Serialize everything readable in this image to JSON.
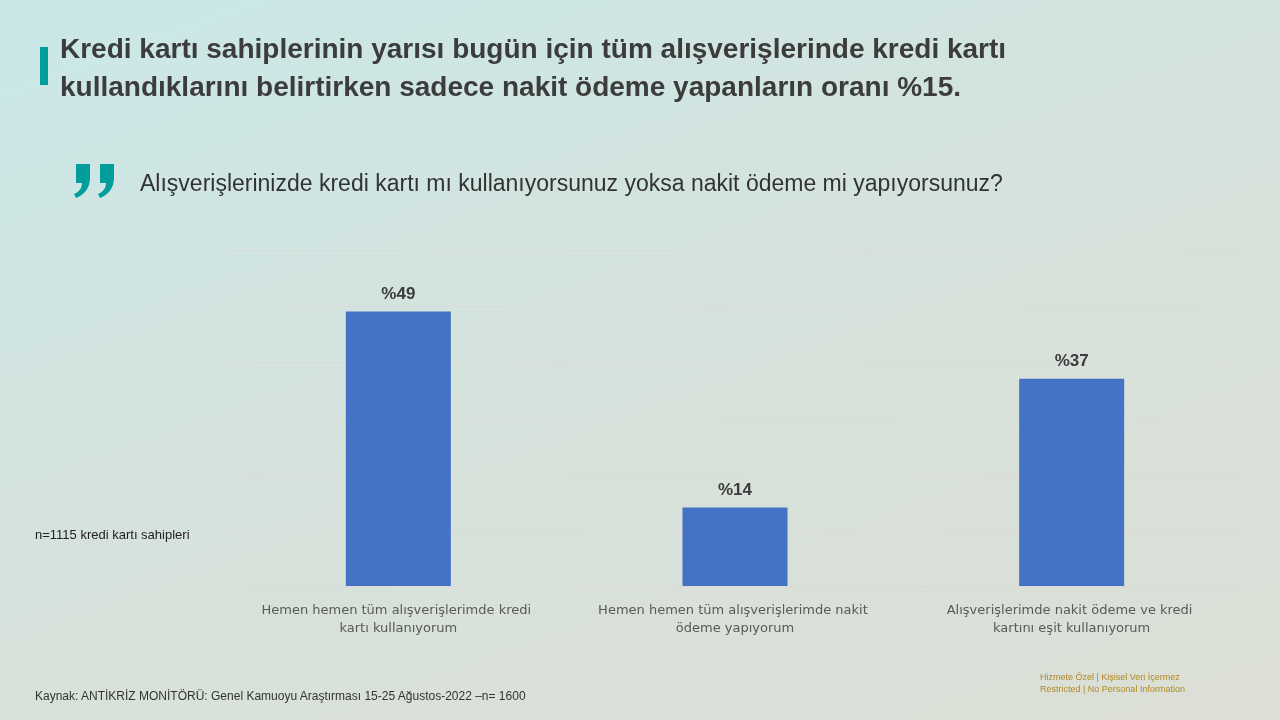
{
  "chart_data": {
    "type": "bar",
    "title": "Kredi kartı sahiplerinin yarısı bugün için tüm alışverişlerinde kredi kartı kullandıklarını belirtirken sadece nakit ödeme yapanların oranı %15.",
    "subtitle": "Alışverişlerinizde kredi kartı mı kullanıyorsunuz yoksa nakit ödeme mi yapıyorsunuz?",
    "categories": [
      "Hemen hemen tüm alışverişlerimde kredi kartı kullanıyorum",
      "Hemen hemen tüm alışverişlerimde nakit ödeme yapıyorum",
      "Alışverişlerimde nakit ödeme ve kredi kartını eşit kullanıyorum"
    ],
    "values": [
      49,
      14,
      37
    ],
    "value_labels": [
      "%49",
      "%14",
      "%37"
    ],
    "color": "#4472c4",
    "ylim": [
      0,
      60
    ],
    "yticks": [
      {
        "value": 0,
        "label": null
      },
      {
        "value": 10,
        "label": null
      },
      {
        "value": 20,
        "label": null
      },
      {
        "value": 30,
        "label": null
      },
      {
        "value": 40,
        "label": null
      },
      {
        "value": 50,
        "label": null
      },
      {
        "value": 60,
        "label": null
      }
    ],
    "grid": "y",
    "tick_labels": "x",
    "annotations": [
      "n=1115 kredi kartı sahipleri",
      "Kaynak: ANTİKRİZ MONİTÖRÜ: Genel Kamuoyu Araştırması 15-25 Ağustos-2022 –n= 1600",
      "Hizmete Özel | Kişisel Veri İçermez",
      "Restricted | No Personal Information"
    ]
  }
}
